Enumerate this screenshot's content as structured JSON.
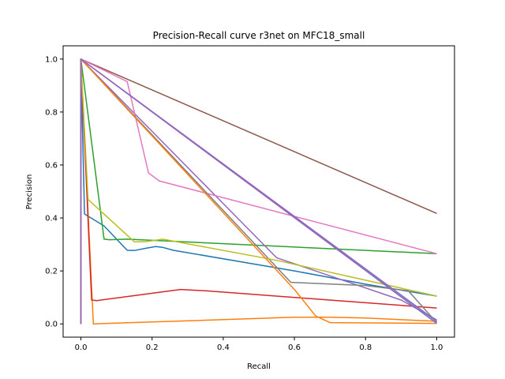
{
  "chart_data": {
    "type": "line",
    "title": "Precision-Recall curve r3net on MFC18_small",
    "xlabel": "Recall",
    "ylabel": "Precision",
    "xlim": [
      -0.05,
      1.05
    ],
    "ylim": [
      -0.05,
      1.05
    ],
    "xticks": [
      "0.0",
      "0.2",
      "0.4",
      "0.6",
      "0.8",
      "1.0"
    ],
    "yticks": [
      "0.0",
      "0.2",
      "0.4",
      "0.6",
      "0.8",
      "1.0"
    ],
    "grid": false,
    "series": [
      {
        "color": "#1f77b4",
        "x": [
          0,
          0,
          0.01,
          0.065,
          0.13,
          0.15,
          0.18,
          0.21,
          0.23,
          0.26,
          0.6,
          0.8,
          1.0
        ],
        "y": [
          0,
          1.0,
          0.415,
          0.37,
          0.278,
          0.277,
          0.285,
          0.292,
          0.289,
          0.278,
          0.2,
          0.15,
          0.105
        ]
      },
      {
        "color": "#ff7f0e",
        "x": [
          0,
          0,
          0.035,
          0.6,
          0.7,
          0.8,
          1.0
        ],
        "y": [
          0,
          1.0,
          0,
          0.025,
          0.025,
          0.022,
          0.01
        ]
      },
      {
        "color": "#2ca02c",
        "x": [
          0,
          0,
          0.065,
          0.08,
          0.13,
          1.0
        ],
        "y": [
          0,
          1.0,
          0.32,
          0.318,
          0.32,
          0.265
        ]
      },
      {
        "color": "#d62728",
        "x": [
          0,
          0,
          0.03,
          0.045,
          0.28,
          0.35,
          1.0
        ],
        "y": [
          0,
          1.0,
          0.09,
          0.088,
          0.13,
          0.125,
          0.06
        ]
      },
      {
        "color": "#9467bd",
        "x": [
          0,
          0,
          0.55,
          0.9,
          1.0
        ],
        "y": [
          0,
          1.0,
          0.25,
          0.09,
          0.015
        ]
      },
      {
        "color": "#8c564b",
        "x": [
          0,
          0,
          1.0
        ],
        "y": [
          0,
          1.0,
          0.417
        ]
      },
      {
        "color": "#e377c2",
        "x": [
          0,
          0,
          0.13,
          0.19,
          0.2,
          0.22,
          1.0
        ],
        "y": [
          0,
          1.0,
          0.915,
          0.57,
          0.56,
          0.54,
          0.265
        ]
      },
      {
        "color": "#7f7f7f",
        "x": [
          0,
          0,
          0.59,
          0.8,
          0.92,
          1.0
        ],
        "y": [
          0,
          1.0,
          0.157,
          0.145,
          0.125,
          0.005
        ]
      },
      {
        "color": "#bcbd22",
        "x": [
          0,
          0,
          0.02,
          0.15,
          0.18,
          0.23,
          0.55,
          1.0
        ],
        "y": [
          0,
          1.0,
          0.47,
          0.31,
          0.31,
          0.32,
          0.24,
          0.105
        ]
      },
      {
        "color": "#17becf",
        "x": [
          0,
          0,
          1.0
        ],
        "y": [
          0,
          1.0,
          0.008
        ]
      },
      {
        "color": "#ff7f0e",
        "x": [
          0,
          0,
          0.6,
          0.66,
          0.7,
          1.0
        ],
        "y": [
          0,
          1.0,
          0.13,
          0.03,
          0.005,
          0.002
        ]
      },
      {
        "color": "#9467bd",
        "x": [
          0,
          0,
          1.0
        ],
        "y": [
          0,
          1.0,
          0.01
        ]
      },
      {
        "color": "#9467bd",
        "x": [
          0,
          0,
          1.0
        ],
        "y": [
          0,
          1.0,
          0.002
        ]
      }
    ]
  }
}
